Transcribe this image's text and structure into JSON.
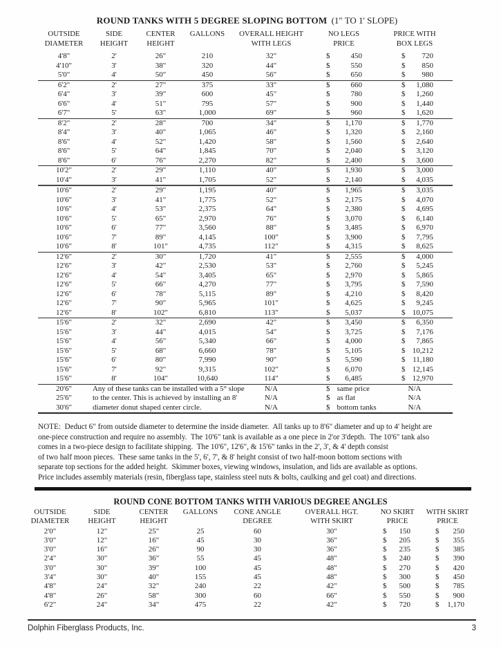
{
  "table1": {
    "title": "ROUND TANKS WITH 5 DEGREE SLOPING BOTTOM",
    "title_suffix": "(1\" TO 1' SLOPE)",
    "col_headers": [
      {
        "l1": "OUTSIDE",
        "l2": "DIAMETER"
      },
      {
        "l1": "SIDE",
        "l2": "HEIGHT"
      },
      {
        "l1": "CENTER",
        "l2": "HEIGHT"
      },
      {
        "l1": "GALLONS",
        "l2": ""
      },
      {
        "l1": "OVERALL HEIGHT",
        "l2": "WITH LEGS"
      },
      {
        "l1": "NO LEGS",
        "l2": "PRICE"
      },
      {
        "l1": "PRICE WITH",
        "l2": "BOX LEGS"
      }
    ],
    "groups": [
      [
        [
          "4'8\"",
          "2'",
          "26\"",
          "210",
          "32\"",
          "450",
          "720"
        ],
        [
          "4'10\"",
          "3'",
          "38\"",
          "320",
          "44\"",
          "550",
          "850"
        ],
        [
          "5'0\"",
          "4'",
          "50\"",
          "450",
          "56\"",
          "650",
          "980"
        ]
      ],
      [
        [
          "6'2\"",
          "2'",
          "27\"",
          "375",
          "33\"",
          "660",
          "1,080"
        ],
        [
          "6'4\"",
          "3'",
          "39\"",
          "600",
          "45\"",
          "780",
          "1,260"
        ],
        [
          "6'6\"",
          "4'",
          "51\"",
          "795",
          "57\"",
          "900",
          "1,440"
        ],
        [
          "6'7\"",
          "5'",
          "63\"",
          "1,000",
          "69\"",
          "960",
          "1,620"
        ]
      ],
      [
        [
          "8'2\"",
          "2'",
          "28\"",
          "700",
          "34\"",
          "1,170",
          "1,770"
        ],
        [
          "8'4\"",
          "3'",
          "40\"",
          "1,065",
          "46\"",
          "1,320",
          "2,160"
        ],
        [
          "8'6\"",
          "4'",
          "52\"",
          "1,420",
          "58\"",
          "1,560",
          "2,640"
        ],
        [
          "8'6\"",
          "5'",
          "64\"",
          "1,845",
          "70\"",
          "2,040",
          "3,120"
        ],
        [
          "8'6\"",
          "6'",
          "76\"",
          "2,270",
          "82\"",
          "2,400",
          "3,600"
        ]
      ],
      [
        [
          "10'2\"",
          "2'",
          "29\"",
          "1,110",
          "40\"",
          "1,930",
          "3,000"
        ],
        [
          "10'4\"",
          "3'",
          "41\"",
          "1,705",
          "52\"",
          "2,140",
          "4,035"
        ]
      ],
      [
        [
          "10'6\"",
          "2'",
          "29\"",
          "1,195",
          "40\"",
          "1,965",
          "3,035"
        ],
        [
          "10'6\"",
          "3'",
          "41\"",
          "1,775",
          "52\"",
          "2,175",
          "4,070"
        ],
        [
          "10'6\"",
          "4'",
          "53\"",
          "2,375",
          "64\"",
          "2,380",
          "4,695"
        ],
        [
          "10'6\"",
          "5'",
          "65\"",
          "2,970",
          "76\"",
          "3,070",
          "6,140"
        ],
        [
          "10'6\"",
          "6'",
          "77\"",
          "3,560",
          "88\"",
          "3,485",
          "6,970"
        ],
        [
          "10'6\"",
          "7'",
          "89\"",
          "4,145",
          "100\"",
          "3,900",
          "7,795"
        ],
        [
          "10'6\"",
          "8'",
          "101\"",
          "4,735",
          "112\"",
          "4,315",
          "8,625"
        ]
      ],
      [
        [
          "12'6\"",
          "2'",
          "30\"",
          "1,720",
          "41\"",
          "2,555",
          "4,000"
        ],
        [
          "12'6\"",
          "3'",
          "42\"",
          "2,530",
          "53\"",
          "2,760",
          "5,245"
        ],
        [
          "12'6\"",
          "4'",
          "54\"",
          "3,405",
          "65\"",
          "2,970",
          "5,865"
        ],
        [
          "12'6\"",
          "5'",
          "66\"",
          "4,270",
          "77\"",
          "3,795",
          "7,590"
        ],
        [
          "12'6\"",
          "6'",
          "78\"",
          "5,115",
          "89\"",
          "4,210",
          "8,420"
        ],
        [
          "12'6\"",
          "7'",
          "90\"",
          "5,965",
          "101\"",
          "4,625",
          "9,245"
        ],
        [
          "12'6\"",
          "8'",
          "102\"",
          "6,810",
          "113\"",
          "5,037",
          "10,075"
        ]
      ],
      [
        [
          "15'6\"",
          "2'",
          "32\"",
          "2,690",
          "42\"",
          "3,450",
          "6,350"
        ],
        [
          "15'6\"",
          "3'",
          "44\"",
          "4,015",
          "54\"",
          "3,725",
          "7,176"
        ],
        [
          "15'6\"",
          "4'",
          "56\"",
          "5,340",
          "66\"",
          "4,000",
          "7,865"
        ],
        [
          "15'6\"",
          "5'",
          "68\"",
          "6,660",
          "78\"",
          "5,105",
          "10,212"
        ],
        [
          "15'6\"",
          "6'",
          "80\"",
          "7,990",
          "90\"",
          "5,590",
          "11,180"
        ],
        [
          "15'6\"",
          "7'",
          "92\"",
          "9,315",
          "102\"",
          "6,070",
          "12,145"
        ],
        [
          "15'6\"",
          "8'",
          "104\"",
          "10,640",
          "114\"",
          "6,485",
          "12,970"
        ]
      ]
    ],
    "special_rows": [
      [
        "20'6\"",
        "Any of these tanks can be installed with a 5° slope",
        "N/A",
        "same price",
        "N/A"
      ],
      [
        "25'6\"",
        "to the center. This is achieved by installing an 8'",
        "N/A",
        "as flat",
        "N/A"
      ],
      [
        "30'6\"",
        "diameter donut shaped center circle.",
        "N/A",
        "bottom tanks",
        "N/A"
      ]
    ],
    "note_lines": [
      "NOTE:  Deduct 6\" from outside diameter to determine the inside diameter.  All tanks up to 8'6\" diameter and up to 4' height are",
      "one-piece construction and require no assembly.  The 10'6\" tank is available as a one piece in 2'or 3'depth.  The 10'6\" tank also",
      "comes in a two-piece design to facilitate shipping.  The 10'6\", 12'6\", & 15'6\" tanks in the 2', 3', & 4' depth consist",
      "of two half moon pieces.  These same tanks in the 5', 6', 7', & 8' height consist of two half-moon bottom sections with",
      "separate top sections for the added height.  Skimmer boxes, viewing windows, insulation, and lids are available as options.",
      "Price includes assembly materials (resin, fiberglass tape, stainless steel nuts & bolts, caulking and gel coat) and directions."
    ]
  },
  "table2": {
    "title": "ROUND CONE BOTTOM TANKS WITH VARIOUS DEGREE ANGLES",
    "col_headers": [
      {
        "l1": "OUTSIDE",
        "l2": "DIAMETER"
      },
      {
        "l1": "SIDE",
        "l2": "HEIGHT"
      },
      {
        "l1": "CENTER",
        "l2": "HEIGHT"
      },
      {
        "l1": "GALLONS",
        "l2": ""
      },
      {
        "l1": "CONE ANGLE",
        "l2": "DEGREE"
      },
      {
        "l1": "OVERALL HGT.",
        "l2": "WITH SKIRT"
      },
      {
        "l1": "NO SKIRT",
        "l2": "PRICE"
      },
      {
        "l1": "WITH SKIRT",
        "l2": "PRICE"
      }
    ],
    "rows": [
      [
        "2'0\"",
        "12\"",
        "25\"",
        "25",
        "60",
        "30\"",
        "150",
        "250"
      ],
      [
        "3'0\"",
        "12\"",
        "16\"",
        "45",
        "30",
        "36\"",
        "205",
        "355"
      ],
      [
        "3'0\"",
        "16\"",
        "26\"",
        "90",
        "30",
        "36\"",
        "235",
        "385"
      ],
      [
        "2'4\"",
        "30\"",
        "36\"",
        "55",
        "45",
        "48\"",
        "240",
        "390"
      ],
      [
        "3'0\"",
        "30\"",
        "39\"",
        "100",
        "45",
        "48\"",
        "270",
        "420"
      ],
      [
        "3'4\"",
        "30\"",
        "40\"",
        "155",
        "45",
        "48\"",
        "300",
        "450"
      ],
      [
        "4'8\"",
        "24\"",
        "32\"",
        "240",
        "22",
        "42\"",
        "500",
        "785"
      ],
      [
        "4'8\"",
        "26\"",
        "58\"",
        "300",
        "60",
        "66\"",
        "550",
        "900"
      ],
      [
        "6'2\"",
        "24\"",
        "34\"",
        "475",
        "22",
        "42\"",
        "720",
        "1,170"
      ]
    ]
  },
  "footer": {
    "company": "Dolphin Fiberglass Products, Inc.",
    "page_number": "3"
  }
}
